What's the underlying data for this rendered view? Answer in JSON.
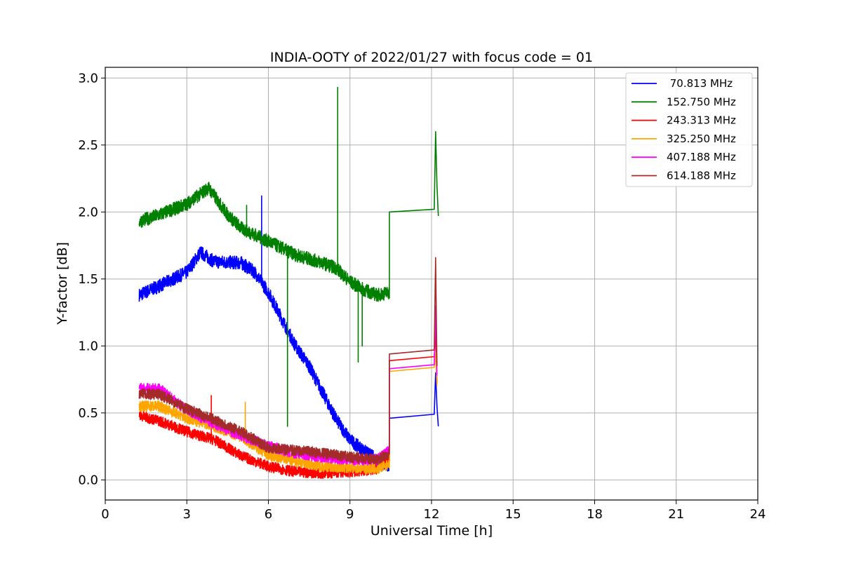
{
  "chart_data": {
    "type": "line",
    "title": "INDIA-OOTY of 2022/01/27 with focus code = 01",
    "xlabel": "Universal Time [h]",
    "ylabel": "Y-factor [dB]",
    "xlim": [
      0,
      24
    ],
    "ylim": [
      -0.15,
      3.08
    ],
    "xticks": [
      0,
      3,
      6,
      9,
      12,
      15,
      18,
      21,
      24
    ],
    "yticks": [
      0.0,
      0.5,
      1.0,
      1.5,
      2.0,
      2.5,
      3.0
    ],
    "xtick_labels": [
      "0",
      "3",
      "6",
      "9",
      "12",
      "15",
      "18",
      "21",
      "24"
    ],
    "ytick_labels": [
      "0.0",
      "0.5",
      "1.0",
      "1.5",
      "2.0",
      "2.5",
      "3.0"
    ],
    "grid": true,
    "legend_position": "top-right",
    "series": [
      {
        "name": " 70.813 MHz",
        "color": "#0000ff",
        "noise": 0.05,
        "x": [
          1.25,
          2.0,
          3.0,
          3.5,
          4.0,
          5.0,
          5.5,
          6.0,
          6.5,
          7.0,
          7.5,
          8.0,
          8.5,
          9.0,
          9.5,
          10.0,
          10.45
        ],
        "y": [
          1.38,
          1.45,
          1.55,
          1.7,
          1.63,
          1.62,
          1.55,
          1.4,
          1.2,
          1.0,
          0.85,
          0.65,
          0.45,
          0.3,
          0.22,
          0.15,
          0.1
        ],
        "tail_x": [
          10.45,
          12.1,
          12.15,
          12.2,
          12.25
        ],
        "tail_y": [
          0.46,
          0.49,
          0.8,
          0.55,
          0.4
        ],
        "spikes": [
          {
            "x": 5.75,
            "y": 2.12
          }
        ]
      },
      {
        "name": "152.750 MHz",
        "color": "#008000",
        "noise": 0.05,
        "x": [
          1.25,
          2.0,
          3.0,
          3.8,
          4.5,
          5.0,
          6.0,
          7.0,
          8.0,
          8.5,
          9.0,
          9.5,
          10.0,
          10.45
        ],
        "y": [
          1.93,
          1.98,
          2.06,
          2.18,
          1.98,
          1.88,
          1.78,
          1.68,
          1.62,
          1.58,
          1.48,
          1.42,
          1.38,
          1.4
        ],
        "tail_x": [
          10.45,
          12.1,
          12.15,
          12.2,
          12.25
        ],
        "tail_y": [
          2.0,
          2.02,
          2.6,
          2.2,
          1.97
        ],
        "spikes": [
          {
            "x": 8.55,
            "y": 2.93
          },
          {
            "x": 6.7,
            "y": 0.4
          },
          {
            "x": 9.3,
            "y": 0.88
          },
          {
            "x": 9.45,
            "y": 1.0
          },
          {
            "x": 5.2,
            "y": 2.05
          }
        ]
      },
      {
        "name": "243.313 MHz",
        "color": "#ff0000",
        "noise": 0.04,
        "x": [
          1.25,
          2.0,
          3.0,
          4.0,
          5.0,
          6.0,
          7.0,
          8.0,
          9.0,
          10.0,
          10.45
        ],
        "y": [
          0.48,
          0.44,
          0.36,
          0.3,
          0.18,
          0.1,
          0.06,
          0.05,
          0.06,
          0.08,
          0.15
        ],
        "tail_x": [
          10.45,
          12.1,
          12.15,
          12.2
        ],
        "tail_y": [
          0.89,
          0.92,
          1.1,
          0.72
        ],
        "spikes": [
          {
            "x": 3.9,
            "y": 0.63
          }
        ]
      },
      {
        "name": "325.250 MHz",
        "color": "#ffa500",
        "noise": 0.04,
        "x": [
          1.25,
          2.0,
          3.0,
          4.0,
          5.0,
          6.0,
          7.0,
          8.0,
          9.0,
          10.0,
          10.45
        ],
        "y": [
          0.55,
          0.55,
          0.46,
          0.4,
          0.32,
          0.18,
          0.14,
          0.1,
          0.09,
          0.08,
          0.12
        ],
        "tail_x": [
          10.45,
          12.1,
          12.15,
          12.2
        ],
        "tail_y": [
          0.81,
          0.84,
          0.95,
          0.7
        ],
        "spikes": [
          {
            "x": 5.15,
            "y": 0.58
          }
        ]
      },
      {
        "name": "407.188 MHz",
        "color": "#ff00ff",
        "noise": 0.04,
        "x": [
          1.25,
          2.0,
          3.0,
          4.0,
          5.0,
          6.0,
          7.0,
          8.0,
          9.0,
          10.0,
          10.45
        ],
        "y": [
          0.68,
          0.68,
          0.52,
          0.42,
          0.33,
          0.25,
          0.2,
          0.17,
          0.15,
          0.15,
          0.22
        ],
        "tail_x": [
          10.45,
          12.1,
          12.15,
          12.2
        ],
        "tail_y": [
          0.83,
          0.86,
          1.3,
          0.78
        ],
        "spikes": []
      },
      {
        "name": "614.188 MHz",
        "color": "#a52a2a",
        "noise": 0.04,
        "x": [
          1.25,
          2.0,
          3.0,
          4.0,
          5.0,
          6.0,
          7.0,
          8.0,
          9.0,
          10.0,
          10.45
        ],
        "y": [
          0.64,
          0.64,
          0.53,
          0.45,
          0.36,
          0.24,
          0.22,
          0.2,
          0.17,
          0.15,
          0.2
        ],
        "tail_x": [
          10.45,
          12.1,
          12.15,
          12.2
        ],
        "tail_y": [
          0.94,
          0.97,
          1.66,
          0.85
        ],
        "spikes": []
      }
    ]
  }
}
